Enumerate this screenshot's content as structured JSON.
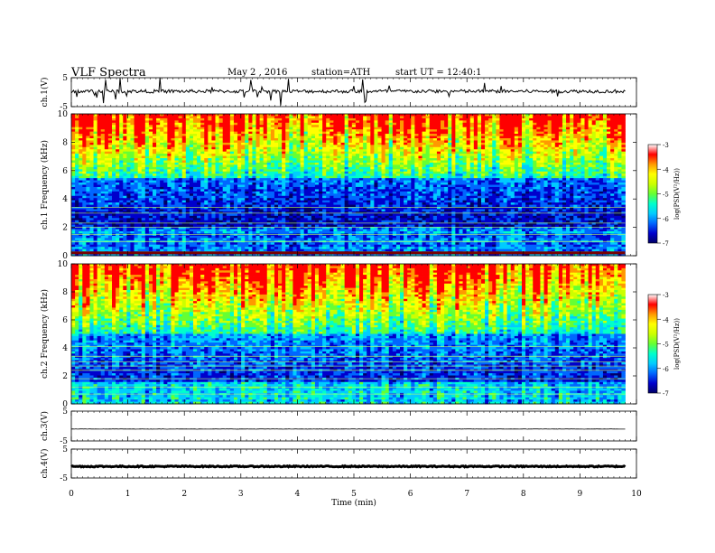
{
  "header": {
    "title": "VLF Spectra",
    "date": "May 2 , 2016",
    "station": "station=ATH",
    "start": "start UT = 12:40:1"
  },
  "chart_data": {
    "type": "heatmap",
    "title": "VLF Spectra",
    "xlabel": "Time (min)",
    "xlim": [
      0,
      10
    ],
    "x_ticks": [
      "0",
      "1",
      "2",
      "3",
      "4",
      "5",
      "6",
      "7",
      "8",
      "9",
      "10"
    ],
    "data_end_min": 9.8,
    "panels": [
      {
        "id": "ch1-waveform",
        "type": "line",
        "ylabel": "ch.1(V)",
        "ylim": [
          -5,
          5
        ],
        "y_ticks": [
          "5",
          "-5"
        ],
        "baseline": 0.3,
        "noise_amplitude": 0.6,
        "spikes": true
      },
      {
        "id": "ch1-spectrogram",
        "type": "heatmap",
        "ylabel": "ch.1 Frequency (kHz)",
        "ylim": [
          0,
          10
        ],
        "y_ticks": [
          "0",
          "2",
          "4",
          "6",
          "8",
          "10"
        ]
      },
      {
        "id": "ch2-spectrogram",
        "type": "heatmap",
        "ylabel": "ch.2 Frequency (kHz)",
        "ylim": [
          0,
          10
        ],
        "y_ticks": [
          "0",
          "2",
          "4",
          "6",
          "8",
          "10"
        ]
      },
      {
        "id": "ch3-waveform",
        "type": "line",
        "ylabel": "ch.3(V)",
        "ylim": [
          -5,
          5
        ],
        "y_ticks": [
          "5",
          "-5"
        ],
        "baseline": -1.0,
        "noise_amplitude": 0.05,
        "spikes": false
      },
      {
        "id": "ch4-waveform",
        "type": "line",
        "ylabel": "ch.4(V)",
        "ylim": [
          -5,
          5
        ],
        "y_ticks": [
          "5",
          "-5"
        ],
        "baseline": -1.0,
        "noise_amplitude": 0.2,
        "spikes": false
      }
    ],
    "colorbar": {
      "label": "log(PSD(V²/Hz))",
      "range": [
        -7,
        -3
      ],
      "ticks": [
        "-3",
        "-4",
        "-5",
        "-6",
        "-7"
      ],
      "colors": [
        "#000066",
        "#0000cc",
        "#0066ff",
        "#00ccff",
        "#00ffcc",
        "#66ff33",
        "#ccff00",
        "#ffff00",
        "#ff9900",
        "#ff0000",
        "#ffffff"
      ]
    }
  }
}
